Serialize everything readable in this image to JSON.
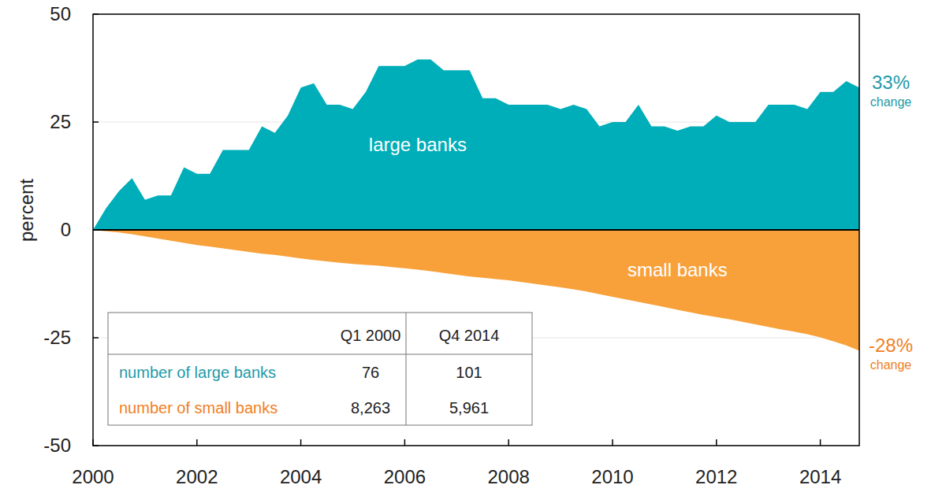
{
  "chart_data": {
    "type": "area",
    "y_label": "percent",
    "x": [
      2000,
      2000.25,
      2000.5,
      2000.75,
      2001,
      2001.25,
      2001.5,
      2001.75,
      2002,
      2002.25,
      2002.5,
      2002.75,
      2003,
      2003.25,
      2003.5,
      2003.75,
      2004,
      2004.25,
      2004.5,
      2004.75,
      2005,
      2005.25,
      2005.5,
      2005.75,
      2006,
      2006.25,
      2006.5,
      2006.75,
      2007,
      2007.25,
      2007.5,
      2007.75,
      2008,
      2008.25,
      2008.5,
      2008.75,
      2009,
      2009.25,
      2009.5,
      2009.75,
      2010,
      2010.25,
      2010.5,
      2010.75,
      2011,
      2011.25,
      2011.5,
      2011.75,
      2012,
      2012.25,
      2012.5,
      2012.75,
      2013,
      2013.25,
      2013.5,
      2013.75,
      2014,
      2014.25,
      2014.5,
      2014.75
    ],
    "series": [
      {
        "name": "large banks",
        "color": "#00aeb9",
        "values": [
          0,
          5,
          9,
          12,
          7,
          8,
          8,
          14.5,
          13,
          13,
          18.5,
          18.5,
          18.5,
          24,
          22.5,
          26.5,
          33,
          34,
          29,
          29,
          28,
          32,
          38,
          38,
          38,
          39.5,
          39.5,
          37,
          37,
          37,
          30.5,
          30.5,
          29,
          29,
          29,
          29,
          28,
          29,
          28,
          24,
          25,
          25,
          29,
          24,
          24,
          23,
          24,
          24,
          26.5,
          25,
          25,
          25,
          29,
          29,
          29,
          28,
          32,
          32,
          34.5,
          33
        ]
      },
      {
        "name": "small banks",
        "color": "#f8a13a",
        "values": [
          0,
          -0.3,
          -0.6,
          -1.0,
          -1.5,
          -2.0,
          -2.5,
          -3.0,
          -3.5,
          -3.9,
          -4.3,
          -4.7,
          -5.1,
          -5.5,
          -5.8,
          -6.2,
          -6.6,
          -7.0,
          -7.3,
          -7.6,
          -7.9,
          -8.1,
          -8.3,
          -8.6,
          -8.9,
          -9.2,
          -9.6,
          -10.0,
          -10.4,
          -10.8,
          -11.1,
          -11.4,
          -11.7,
          -12.1,
          -12.5,
          -12.9,
          -13.3,
          -13.8,
          -14.3,
          -14.9,
          -15.5,
          -16.1,
          -16.7,
          -17.3,
          -17.9,
          -18.5,
          -19.1,
          -19.7,
          -20.2,
          -20.7,
          -21.3,
          -21.9,
          -22.5,
          -23.1,
          -23.6,
          -24.2,
          -24.9,
          -25.8,
          -26.8,
          -28
        ]
      }
    ],
    "annotations": [
      {
        "text": "33%",
        "subtext": "change"
      },
      {
        "text": "-28%",
        "subtext": "change"
      }
    ],
    "table": {
      "columns": [
        "Q1 2000",
        "Q4 2014"
      ],
      "rows": [
        {
          "label": "number of large banks",
          "values": [
            "76",
            "101"
          ]
        },
        {
          "label": "number of small banks",
          "values": [
            "8,263",
            "5,961"
          ]
        }
      ]
    },
    "xlim": [
      2000,
      2014.75
    ],
    "xticks": [
      2000,
      2002,
      2004,
      2006,
      2008,
      2010,
      2012,
      2014
    ],
    "ylim": [
      -50,
      50
    ],
    "yticks": [
      -50,
      -25,
      0,
      25,
      50
    ],
    "grid": true
  }
}
